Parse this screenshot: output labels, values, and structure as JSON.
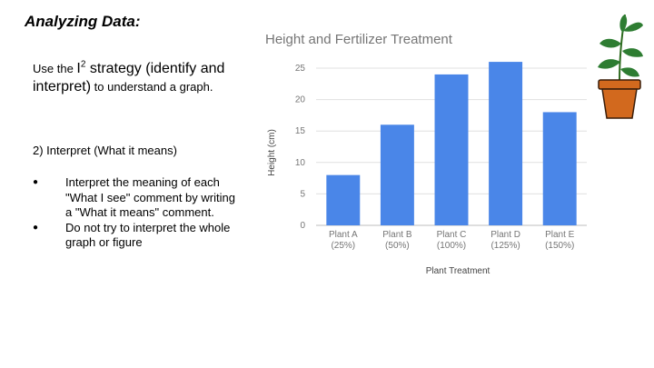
{
  "slide": {
    "title": "Analyzing Data:",
    "intro": {
      "part1": "Use the ",
      "i2_letter": "I",
      "i2_sup": "2",
      "part2": " strategy (identify and interpret)",
      "part3": " to understand a graph."
    },
    "step": "2)  Interpret (What it means)",
    "bullets": [
      "Interpret the meaning of each \"What I see\" comment by writing a \"What it means\" comment.",
      "Do not try to interpret the whole graph or figure"
    ]
  },
  "chart_data": {
    "type": "bar",
    "title": "Height  and Fertilizer Treatment",
    "xlabel": "Plant Treatment",
    "ylabel": "Height (cm)",
    "categories": [
      [
        "Plant A",
        "(25%)"
      ],
      [
        "Plant B",
        "(50%)"
      ],
      [
        "Plant C",
        "(100%)"
      ],
      [
        "Plant D",
        "(125%)"
      ],
      [
        "Plant E",
        "(150%)"
      ]
    ],
    "values": [
      8,
      16,
      24,
      26,
      18
    ],
    "ylim": [
      0,
      25
    ],
    "yticks": [
      0,
      5,
      10,
      15,
      20,
      25
    ],
    "grid": true,
    "legend": "none",
    "bar_color": "#4a86e8"
  },
  "plant": {
    "pot_color": "#d2691e",
    "leaf_color": "#2e7d32"
  }
}
